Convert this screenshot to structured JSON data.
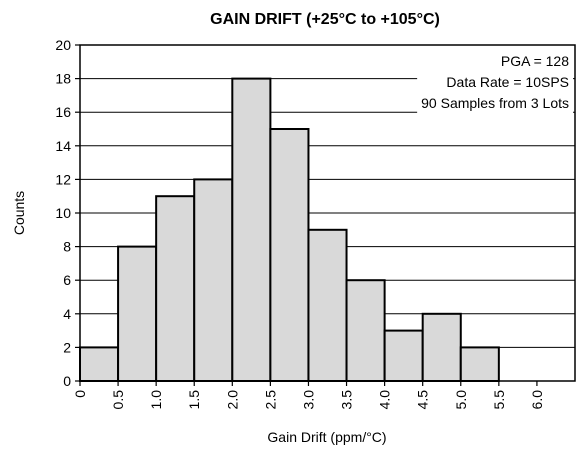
{
  "chart_data": {
    "type": "bar",
    "title": "GAIN DRIFT (+25°C to +105°C)",
    "xlabel": "Gain Drift (ppm/°C)",
    "ylabel": "Counts",
    "x_ticks": [
      "0",
      "0.5",
      "1.0",
      "1.5",
      "2.0",
      "2.5",
      "3.0",
      "3.5",
      "4.0",
      "4.5",
      "5.0",
      "5.5",
      "6.0"
    ],
    "y_ticks": [
      "0",
      "2",
      "4",
      "6",
      "8",
      "10",
      "12",
      "14",
      "16",
      "18",
      "20"
    ],
    "ylim": [
      0,
      20
    ],
    "categories": [
      "0.5",
      "1.0",
      "1.5",
      "2.0",
      "2.5",
      "3.0",
      "3.5",
      "4.0",
      "4.5",
      "5.0",
      "5.5"
    ],
    "values": [
      2,
      8,
      11,
      12,
      18,
      15,
      9,
      6,
      3,
      4,
      2
    ],
    "annotations": [
      "PGA = 128",
      "Data Rate = 10SPS",
      "90 Samples from 3 Lots"
    ],
    "grid": "horizontal",
    "colors": {
      "bar_fill": "#d9d9d9",
      "bar_stroke": "#000000",
      "grid": "#000000"
    }
  }
}
